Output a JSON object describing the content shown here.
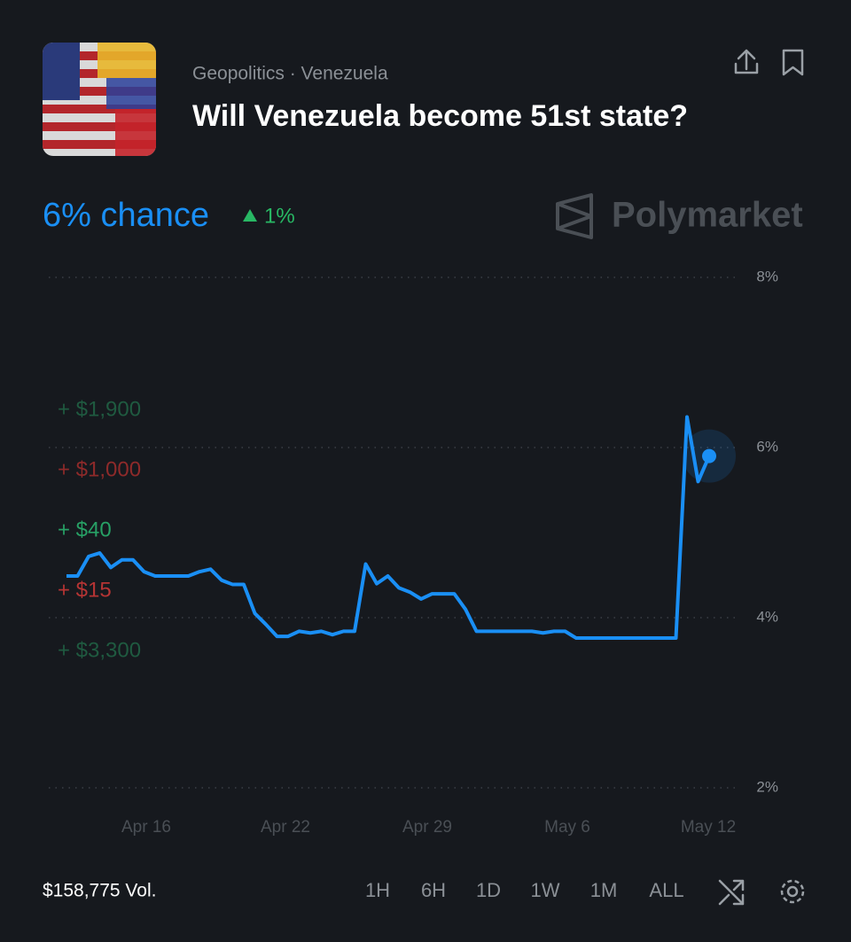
{
  "header": {
    "category": "Geopolitics · Venezuela",
    "question": "Will Venezuela become 51st state?"
  },
  "summary": {
    "chance": "6% chance",
    "change": "1%",
    "brand": "Polymarket"
  },
  "trades": [
    {
      "label": "+ $1,900",
      "color": "#1f5a40"
    },
    {
      "label": "+ $1,000",
      "color": "#8e2a2a"
    },
    {
      "label": "+ $40",
      "color": "#27a065"
    },
    {
      "label": "+ $15",
      "color": "#b63434"
    },
    {
      "label": "+ $3,300",
      "color": "#1f5a40"
    }
  ],
  "chart_data": {
    "type": "line",
    "series": [
      {
        "color": "#1a8ff5",
        "values": [
          4.49,
          4.49,
          4.72,
          4.76,
          4.59,
          4.68,
          4.68,
          4.54,
          4.49,
          4.49,
          4.49,
          4.49,
          4.54,
          4.57,
          4.44,
          4.39,
          4.39,
          4.05,
          3.92,
          3.78,
          3.78,
          3.84,
          3.82,
          3.84,
          3.8,
          3.84,
          3.84,
          4.63,
          4.4,
          4.49,
          4.35,
          4.3,
          4.22,
          4.28,
          4.28,
          4.28,
          4.1,
          3.84,
          3.84,
          3.84,
          3.84,
          3.84,
          3.84,
          3.82,
          3.84,
          3.84,
          3.76,
          3.76,
          3.76,
          3.76,
          3.76,
          3.76,
          3.76,
          3.76,
          3.76,
          3.76,
          6.36,
          5.6,
          5.9
        ]
      }
    ],
    "ylim": [
      2,
      8
    ],
    "yticks": [
      {
        "value": 2,
        "label": "2%"
      },
      {
        "value": 4,
        "label": "4%"
      },
      {
        "value": 6,
        "label": "6%"
      },
      {
        "value": 8,
        "label": "8%"
      }
    ],
    "xtick_labels": [
      "Apr 16",
      "Apr 22",
      "Apr 29",
      "May 6",
      "May 12"
    ],
    "grid": true
  },
  "footer": {
    "volume": "$158,775 Vol.",
    "timeframes": [
      "1H",
      "6H",
      "1D",
      "1W",
      "1M",
      "ALL"
    ]
  }
}
